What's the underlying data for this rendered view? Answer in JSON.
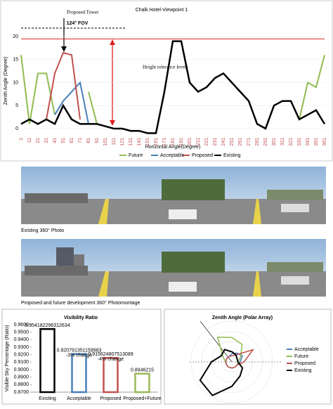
{
  "chart_data": [
    {
      "type": "line",
      "title": "Chalk Hotel-Viewpoint 1",
      "xlabel": "Horizontal Angle(Degree)",
      "ylabel": "Zenith Angle (Degree)",
      "annotations": [
        "Proposed Tower",
        "124° FOV",
        "Height tolerance levels"
      ],
      "x": [
        1,
        11,
        21,
        31,
        41,
        51,
        61,
        71,
        81,
        91,
        101,
        111,
        121,
        131,
        141,
        151,
        161,
        171,
        181,
        191,
        201,
        211,
        221,
        231,
        241,
        251,
        261,
        271,
        281,
        291,
        301,
        311,
        321,
        331,
        341,
        351,
        361
      ],
      "xlim": [
        1,
        361
      ],
      "ylim": [
        -1,
        22
      ],
      "yticks": [
        0,
        5,
        10,
        15,
        20
      ],
      "series": [
        {
          "name": "Future",
          "color": "#8fbc4f",
          "values": [
            16,
            1,
            12,
            12,
            3,
            null,
            null,
            null,
            8,
            1,
            null,
            null,
            null,
            null,
            null,
            null,
            null,
            null,
            null,
            null,
            null,
            null,
            null,
            null,
            null,
            null,
            null,
            null,
            null,
            null,
            null,
            null,
            null,
            2,
            10,
            9,
            16
          ]
        },
        {
          "name": "Acceptable",
          "color": "#4a7ebb",
          "values": [
            null,
            null,
            null,
            null,
            3,
            6,
            8,
            10,
            1,
            null,
            null,
            null,
            null,
            null,
            null,
            null,
            null,
            null,
            null,
            null,
            null,
            null,
            null,
            null,
            null,
            null,
            null,
            null,
            null,
            null,
            null,
            null,
            null,
            null,
            null,
            null,
            null
          ]
        },
        {
          "name": "Proposed",
          "color": "#c0504d",
          "values": [
            null,
            null,
            null,
            2,
            12,
            16.5,
            16,
            2,
            null,
            null,
            null,
            null,
            null,
            null,
            null,
            null,
            null,
            null,
            null,
            null,
            null,
            null,
            null,
            null,
            null,
            null,
            null,
            null,
            null,
            null,
            null,
            null,
            null,
            null,
            null,
            null,
            null
          ]
        },
        {
          "name": "Existing",
          "color": "#000000",
          "values": [
            1,
            2,
            1,
            2,
            1,
            5,
            2,
            1,
            1,
            1,
            0.5,
            0,
            0,
            -0.5,
            -0.5,
            -1,
            -1,
            8,
            19,
            19,
            10,
            8,
            9,
            11,
            12,
            10,
            8,
            6,
            1,
            0,
            5,
            6,
            6,
            2,
            3,
            4,
            1
          ]
        }
      ],
      "tolerance": 19.5
    },
    {
      "type": "bar",
      "title": "Visibility Ratio",
      "ylabel": "Visible Sky Percentage (Ratio)",
      "categories": [
        "Existing",
        "Acceptable",
        "Proposed",
        "Proposed+Future"
      ],
      "values": [
        0.954182296312634,
        0.920791351159983,
        0.915624807513089,
        0.8946215
      ],
      "colors": [
        "#000000",
        "#4a7ebb",
        "#c0504d",
        "#9bbb59"
      ],
      "annotations": [
        "-3% change",
        "-4% change"
      ],
      "ylim": [
        0.87,
        0.96
      ],
      "yticks": [
        {
          "value": 0.87,
          "label": "0.8700"
        },
        {
          "value": 0.88,
          "label": "0.8800"
        },
        {
          "value": 0.89,
          "label": "0.8900"
        },
        {
          "value": 0.9,
          "label": "0.9000"
        },
        {
          "value": 0.91,
          "label": "0.9100"
        },
        {
          "value": 0.92,
          "label": "0.9200"
        },
        {
          "value": 0.93,
          "label": "0.9300"
        },
        {
          "value": 0.94,
          "label": "0.9400"
        },
        {
          "value": 0.95,
          "label": "0.9500"
        },
        {
          "value": 0.96,
          "label": "0.9600"
        }
      ]
    },
    {
      "type": "polar",
      "title": "Zenith Angle (Polar Array)",
      "theta": [
        0,
        30,
        60,
        90,
        120,
        150,
        180,
        210,
        240,
        270,
        300,
        330
      ],
      "rlim": [
        0,
        20
      ],
      "series": [
        {
          "name": "Acceptable",
          "color": "#4a7ebb",
          "values": [
            4,
            5,
            6,
            4,
            3,
            3,
            3,
            3,
            3,
            3,
            3,
            3
          ]
        },
        {
          "name": "Future",
          "color": "#8fbc4f",
          "values": [
            12,
            10,
            5,
            3,
            3,
            3,
            3,
            3,
            3,
            3,
            5,
            14
          ]
        },
        {
          "name": "Proposed",
          "color": "#c0504d",
          "values": [
            3,
            4,
            12,
            6,
            3,
            3,
            3,
            3,
            3,
            3,
            3,
            3
          ]
        },
        {
          "name": "Existing",
          "color": "#000000",
          "values": [
            5,
            4,
            3,
            3,
            6,
            8,
            12,
            19,
            18,
            10,
            6,
            7
          ]
        }
      ]
    }
  ],
  "photos": [
    {
      "caption": "Existing 360° Photo"
    },
    {
      "caption": "Proposed and future development 360° Photomontage"
    }
  ]
}
